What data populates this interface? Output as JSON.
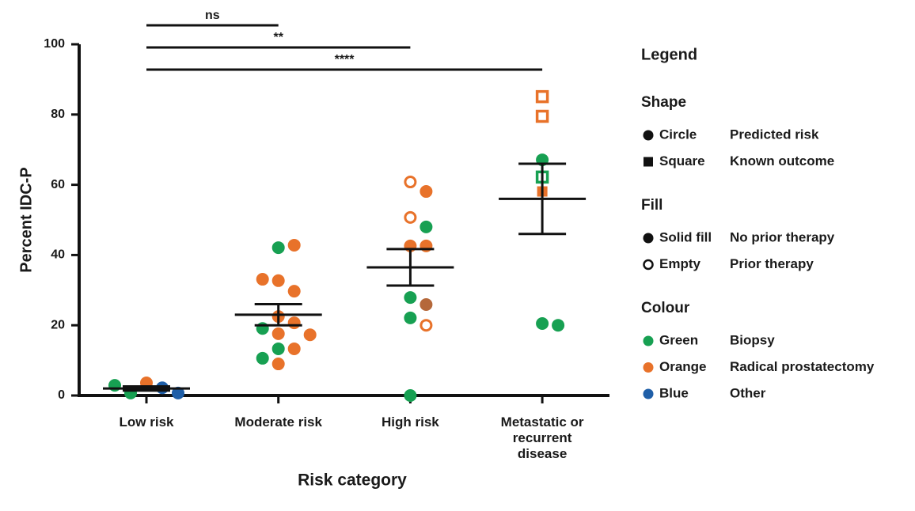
{
  "chart_data": {
    "type": "dotplot",
    "y_label": "Percent IDC-P",
    "x_label": "Risk category",
    "categories": [
      "Low risk",
      "Moderate risk",
      "High risk",
      "Metastatic or recurrent disease"
    ],
    "ylim": [
      0,
      100
    ],
    "yticks": [
      0,
      20,
      40,
      60,
      80,
      100
    ],
    "means": [
      2,
      23,
      36.5,
      56
    ],
    "sem": [
      0.6,
      3,
      5.2,
      10
    ],
    "comparisons": [
      {
        "label": "ns",
        "groups": [
          0,
          1
        ]
      },
      {
        "label": "**",
        "groups": [
          0,
          2
        ]
      },
      {
        "label": "****",
        "groups": [
          0,
          3
        ]
      }
    ],
    "points": [
      {
        "category": 0,
        "value": 3.6,
        "color": "#e8722a",
        "shape": "circle",
        "filled": true
      },
      {
        "category": 0,
        "value": 2.2,
        "color": "#1f5fa8",
        "shape": "circle",
        "filled": true
      },
      {
        "category": 0,
        "value": 0.7,
        "color": "#17a052",
        "shape": "circle",
        "filled": true
      },
      {
        "category": 0,
        "value": 0.7,
        "color": "#1f5fa8",
        "shape": "circle",
        "filled": true
      },
      {
        "category": 0,
        "value": 2.9,
        "color": "#17a052",
        "shape": "circle",
        "filled": true
      },
      {
        "category": 1,
        "value": 42.1,
        "color": "#17a052",
        "shape": "circle",
        "filled": true
      },
      {
        "category": 1,
        "value": 42.8,
        "color": "#e8722a",
        "shape": "circle",
        "filled": true
      },
      {
        "category": 1,
        "value": 32.7,
        "color": "#e8722a",
        "shape": "circle",
        "filled": true
      },
      {
        "category": 1,
        "value": 29.7,
        "color": "#e8722a",
        "shape": "circle",
        "filled": true
      },
      {
        "category": 1,
        "value": 33.1,
        "color": "#e8722a",
        "shape": "circle",
        "filled": true
      },
      {
        "category": 1,
        "value": 22.5,
        "color": "#e8722a",
        "shape": "circle",
        "filled": true
      },
      {
        "category": 1,
        "value": 20.7,
        "color": "#e8722a",
        "shape": "circle",
        "filled": true
      },
      {
        "category": 1,
        "value": 19.1,
        "color": "#17a052",
        "shape": "circle",
        "filled": true
      },
      {
        "category": 1,
        "value": 17.6,
        "color": "#e8722a",
        "shape": "circle",
        "filled": true
      },
      {
        "category": 1,
        "value": 17.3,
        "color": "#e8722a",
        "shape": "circle",
        "filled": true
      },
      {
        "category": 1,
        "value": 13.3,
        "color": "#17a052",
        "shape": "circle",
        "filled": true
      },
      {
        "category": 1,
        "value": 13.3,
        "color": "#e8722a",
        "shape": "circle",
        "filled": true
      },
      {
        "category": 1,
        "value": 10.6,
        "color": "#17a052",
        "shape": "circle",
        "filled": true
      },
      {
        "category": 1,
        "value": 9.0,
        "color": "#e8722a",
        "shape": "circle",
        "filled": true
      },
      {
        "category": 2,
        "value": 60.8,
        "color": "#e8722a",
        "shape": "circle",
        "filled": false
      },
      {
        "category": 2,
        "value": 58.1,
        "color": "#e8722a",
        "shape": "circle",
        "filled": true
      },
      {
        "category": 2,
        "value": 50.7,
        "color": "#e8722a",
        "shape": "circle",
        "filled": false
      },
      {
        "category": 2,
        "value": 48.0,
        "color": "#17a052",
        "shape": "circle",
        "filled": true
      },
      {
        "category": 2,
        "value": 42.6,
        "color": "#e8722a",
        "shape": "circle",
        "filled": true
      },
      {
        "category": 2,
        "value": 42.6,
        "color": "#e8722a",
        "shape": "circle",
        "filled": true
      },
      {
        "category": 2,
        "value": 27.9,
        "color": "#17a052",
        "shape": "circle",
        "filled": true
      },
      {
        "category": 2,
        "value": 25.9,
        "color": "#b5683a",
        "shape": "circle",
        "filled": true
      },
      {
        "category": 2,
        "value": 22.1,
        "color": "#17a052",
        "shape": "circle",
        "filled": true
      },
      {
        "category": 2,
        "value": 20.0,
        "color": "#e8722a",
        "shape": "circle",
        "filled": false
      },
      {
        "category": 2,
        "value": 0,
        "color": "#17a052",
        "shape": "circle",
        "filled": true
      },
      {
        "category": 3,
        "value": 85.1,
        "color": "#e8722a",
        "shape": "square",
        "filled": false
      },
      {
        "category": 3,
        "value": 79.5,
        "color": "#e8722a",
        "shape": "square",
        "filled": false
      },
      {
        "category": 3,
        "value": 67.1,
        "color": "#17a052",
        "shape": "circle",
        "filled": true
      },
      {
        "category": 3,
        "value": 62.2,
        "color": "#17a052",
        "shape": "square",
        "filled": false
      },
      {
        "category": 3,
        "value": 58.1,
        "color": "#e8722a",
        "shape": "square",
        "filled": true
      },
      {
        "category": 3,
        "value": 20.5,
        "color": "#17a052",
        "shape": "circle",
        "filled": true
      },
      {
        "category": 3,
        "value": 20.0,
        "color": "#17a052",
        "shape": "circle",
        "filled": true
      }
    ],
    "legend": {
      "title": "Legend",
      "sections": [
        {
          "title": "Shape",
          "items": [
            {
              "symbol": "circle",
              "filled": true,
              "color": "#111111",
              "name": "Circle",
              "meaning": "Predicted risk"
            },
            {
              "symbol": "square",
              "filled": true,
              "color": "#111111",
              "name": "Square",
              "meaning": "Known outcome"
            }
          ]
        },
        {
          "title": "Fill",
          "items": [
            {
              "symbol": "circle",
              "filled": true,
              "color": "#111111",
              "name": "Solid fill",
              "meaning": "No prior therapy"
            },
            {
              "symbol": "circle",
              "filled": false,
              "color": "#111111",
              "name": "Empty",
              "meaning": "Prior therapy"
            }
          ]
        },
        {
          "title": "Colour",
          "items": [
            {
              "symbol": "circle",
              "filled": true,
              "color": "#17a052",
              "name": "Green",
              "meaning": "Biopsy"
            },
            {
              "symbol": "circle",
              "filled": true,
              "color": "#e8722a",
              "name": "Orange",
              "meaning": "Radical prostatectomy"
            },
            {
              "symbol": "circle",
              "filled": true,
              "color": "#1f5fa8",
              "name": "Blue",
              "meaning": "Other"
            }
          ]
        }
      ]
    }
  }
}
